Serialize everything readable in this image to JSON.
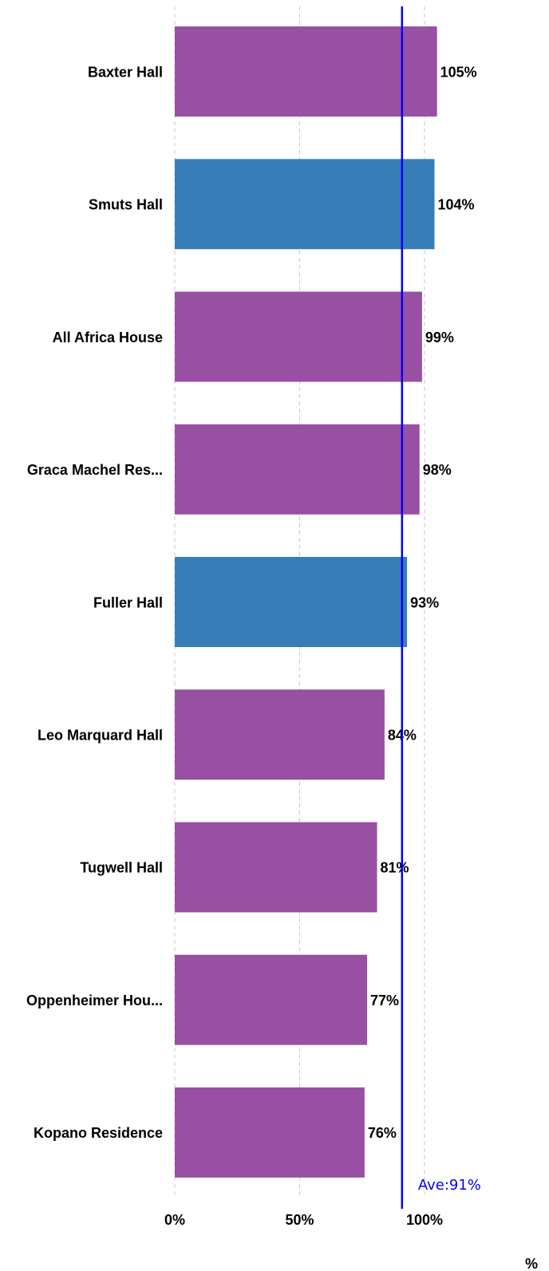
{
  "chart_data": {
    "type": "hbar",
    "categories": [
      "Baxter Hall",
      "Smuts Hall",
      "All Africa House",
      "Graca Machel Res...",
      "Fuller Hall",
      "Leo Marquard Hall",
      "Tugwell Hall",
      "Oppenheimer Hou...",
      "Kopano Residence"
    ],
    "values": [
      105,
      104,
      99,
      98,
      93,
      84,
      81,
      77,
      76
    ],
    "value_labels": [
      "105%",
      "104%",
      "99%",
      "98%",
      "93%",
      "84%",
      "81%",
      "77%",
      "76%"
    ],
    "colors": [
      "#9850a2",
      "#377eb8",
      "#9850a2",
      "#9850a2",
      "#377eb8",
      "#9850a2",
      "#9850a2",
      "#9850a2",
      "#9850a2"
    ],
    "xlim": [
      0,
      150
    ],
    "xticks": [
      {
        "value": 0,
        "label": "0%"
      },
      {
        "value": 50,
        "label": "50%"
      },
      {
        "value": 100,
        "label": "100%"
      }
    ],
    "xlabel": "%",
    "grid": true,
    "average": {
      "value": 91,
      "label": "Ave:91%",
      "color": "#0000ff"
    }
  }
}
